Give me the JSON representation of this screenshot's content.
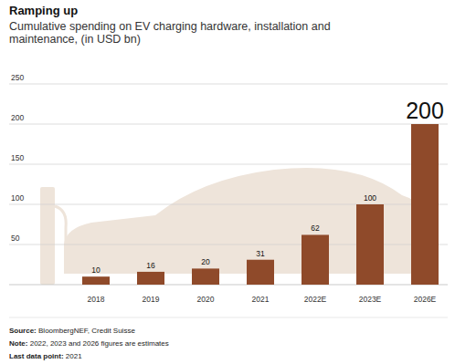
{
  "chart_data": {
    "type": "bar",
    "title": "Ramping up",
    "subtitle": [
      "Cumulative spending on EV charging hardware, installation and",
      "maintenance, (in USD bn)"
    ],
    "categories": [
      "2018",
      "2019",
      "2020",
      "2021",
      "2022E",
      "2023E",
      "2026E"
    ],
    "values": [
      10,
      16,
      20,
      31,
      62,
      100,
      200
    ],
    "color": "#8f4a2a",
    "ylim": [
      0,
      250
    ],
    "yticks": [
      50,
      100,
      150,
      200,
      250
    ],
    "grid": true,
    "data_labels": true,
    "source": "Source: BloombergNEF, Credit Suisse",
    "note": "Note: 2022, 2023 and 2026 figures are estimates",
    "last_data_point": "Last data point: 2021"
  }
}
